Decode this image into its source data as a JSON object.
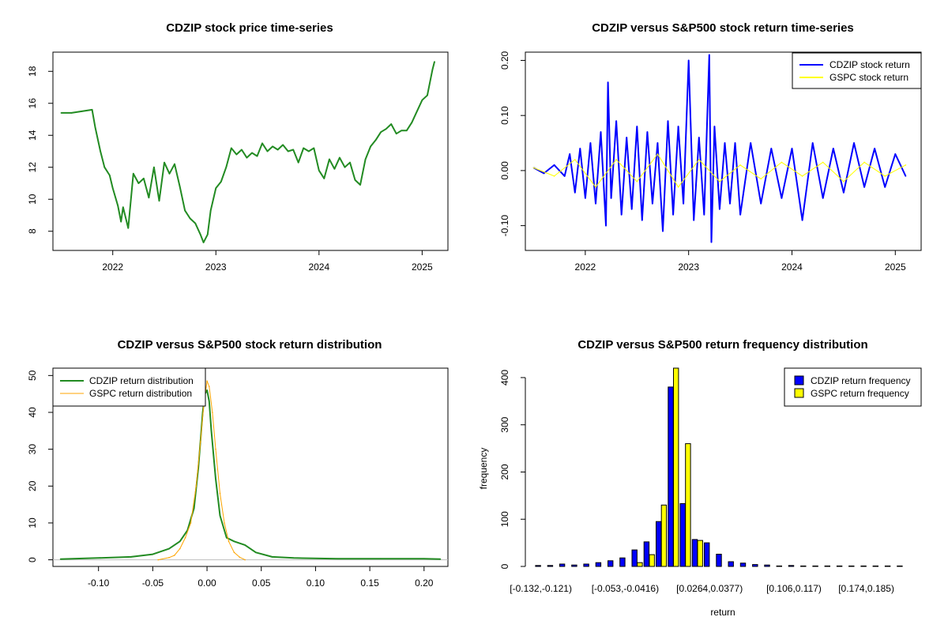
{
  "chart_data": [
    {
      "type": "line",
      "title": "CDZIP stock price time-series",
      "xlabel": "",
      "ylabel": "",
      "x_ticks": [
        "2022",
        "2023",
        "2024",
        "2025"
      ],
      "x_tick_values": [
        2022,
        2023,
        2024,
        2025
      ],
      "xlim": [
        2021.42,
        2025.25
      ],
      "ylim": [
        6.8,
        19.2
      ],
      "y_ticks": [
        8,
        10,
        12,
        14,
        16,
        18
      ],
      "series": [
        {
          "name": "CDZIP price",
          "color": "#228B22",
          "x": [
            2021.5,
            2021.6,
            2021.7,
            2021.8,
            2021.83,
            2021.88,
            2021.92,
            2021.97,
            2022.0,
            2022.05,
            2022.08,
            2022.1,
            2022.15,
            2022.2,
            2022.25,
            2022.3,
            2022.35,
            2022.4,
            2022.45,
            2022.5,
            2022.55,
            2022.6,
            2022.65,
            2022.7,
            2022.75,
            2022.8,
            2022.85,
            2022.88,
            2022.92,
            2022.95,
            2023.0,
            2023.05,
            2023.1,
            2023.15,
            2023.2,
            2023.25,
            2023.3,
            2023.35,
            2023.4,
            2023.45,
            2023.5,
            2023.55,
            2023.6,
            2023.65,
            2023.7,
            2023.75,
            2023.8,
            2023.85,
            2023.9,
            2023.95,
            2024.0,
            2024.05,
            2024.1,
            2024.15,
            2024.2,
            2024.25,
            2024.3,
            2024.35,
            2024.4,
            2024.45,
            2024.5,
            2024.55,
            2024.6,
            2024.65,
            2024.7,
            2024.75,
            2024.8,
            2024.85,
            2024.9,
            2024.95,
            2025.0,
            2025.05,
            2025.1,
            2025.12
          ],
          "values": [
            15.4,
            15.4,
            15.5,
            15.6,
            14.5,
            13.0,
            12.0,
            11.5,
            10.7,
            9.6,
            8.6,
            9.5,
            8.2,
            11.6,
            11.0,
            11.3,
            10.1,
            12.0,
            9.9,
            12.3,
            11.6,
            12.2,
            10.8,
            9.3,
            8.8,
            8.5,
            7.8,
            7.3,
            7.8,
            9.3,
            10.7,
            11.1,
            12.0,
            13.2,
            12.8,
            13.1,
            12.6,
            12.9,
            12.7,
            13.5,
            13.0,
            13.3,
            13.1,
            13.4,
            13.0,
            13.1,
            12.3,
            13.2,
            13.0,
            13.2,
            11.8,
            11.3,
            12.5,
            11.9,
            12.6,
            12.0,
            12.3,
            11.2,
            10.9,
            12.5,
            13.3,
            13.7,
            14.2,
            14.4,
            14.7,
            14.1,
            14.3,
            14.3,
            14.8,
            15.5,
            16.2,
            16.5,
            18.1,
            18.6
          ]
        }
      ]
    },
    {
      "type": "line",
      "title": "CDZIP versus S&P500 stock return time-series",
      "xlabel": "",
      "ylabel": "",
      "x_ticks": [
        "2022",
        "2023",
        "2024",
        "2025"
      ],
      "x_tick_values": [
        2022,
        2023,
        2024,
        2025
      ],
      "xlim": [
        2021.42,
        2025.25
      ],
      "ylim": [
        -0.145,
        0.215
      ],
      "y_ticks": [
        -0.1,
        0.0,
        0.1,
        0.2
      ],
      "y_tick_labels": [
        "-0.10",
        "0.00",
        "0.10",
        "0.20"
      ],
      "legend": "top-right",
      "series": [
        {
          "name": "CDZIP stock return",
          "color": "#0000FF",
          "x": [
            2021.5,
            2021.6,
            2021.7,
            2021.8,
            2021.85,
            2021.9,
            2021.95,
            2022.0,
            2022.05,
            2022.1,
            2022.15,
            2022.2,
            2022.22,
            2022.25,
            2022.3,
            2022.35,
            2022.4,
            2022.45,
            2022.5,
            2022.55,
            2022.6,
            2022.65,
            2022.7,
            2022.75,
            2022.8,
            2022.85,
            2022.9,
            2022.95,
            2023.0,
            2023.05,
            2023.1,
            2023.15,
            2023.2,
            2023.22,
            2023.25,
            2023.3,
            2023.35,
            2023.4,
            2023.45,
            2023.5,
            2023.6,
            2023.7,
            2023.8,
            2023.9,
            2024.0,
            2024.1,
            2024.2,
            2024.3,
            2024.4,
            2024.5,
            2024.6,
            2024.7,
            2024.8,
            2024.9,
            2025.0,
            2025.1
          ],
          "values": [
            0.005,
            -0.005,
            0.01,
            -0.01,
            0.03,
            -0.04,
            0.04,
            -0.05,
            0.05,
            -0.06,
            0.07,
            -0.1,
            0.16,
            -0.05,
            0.09,
            -0.08,
            0.06,
            -0.07,
            0.08,
            -0.09,
            0.07,
            -0.06,
            0.05,
            -0.11,
            0.09,
            -0.08,
            0.08,
            -0.06,
            0.2,
            -0.09,
            0.06,
            -0.08,
            0.21,
            -0.13,
            0.08,
            -0.07,
            0.05,
            -0.06,
            0.05,
            -0.08,
            0.05,
            -0.06,
            0.04,
            -0.05,
            0.04,
            -0.09,
            0.05,
            -0.05,
            0.04,
            -0.04,
            0.05,
            -0.03,
            0.04,
            -0.03,
            0.03,
            -0.01
          ]
        },
        {
          "name": "GSPC stock return",
          "color": "#FFFF00",
          "x": [
            2021.5,
            2021.7,
            2021.9,
            2022.1,
            2022.3,
            2022.5,
            2022.7,
            2022.9,
            2023.1,
            2023.3,
            2023.5,
            2023.7,
            2023.9,
            2024.1,
            2024.3,
            2024.5,
            2024.7,
            2024.9,
            2025.1
          ],
          "values": [
            0.005,
            -0.01,
            0.02,
            -0.03,
            0.02,
            -0.02,
            0.03,
            -0.03,
            0.02,
            -0.02,
            0.01,
            -0.015,
            0.015,
            -0.01,
            0.015,
            -0.02,
            0.015,
            -0.01,
            0.01
          ]
        }
      ]
    },
    {
      "type": "line",
      "title": "CDZIP versus S&P500 stock return distribution",
      "xlabel": "",
      "ylabel": "",
      "x_ticks": [
        "-0.10",
        "-0.05",
        "0.00",
        "0.05",
        "0.10",
        "0.15",
        "0.20"
      ],
      "x_tick_values": [
        -0.1,
        -0.05,
        0.0,
        0.05,
        0.1,
        0.15,
        0.2
      ],
      "xlim": [
        -0.142,
        0.222
      ],
      "ylim": [
        -1.8,
        52
      ],
      "y_ticks": [
        0,
        10,
        20,
        30,
        40,
        50
      ],
      "legend": "top-left",
      "series": [
        {
          "name": "CDZIP return distribution",
          "color": "#228B22",
          "x": [
            -0.135,
            -0.1,
            -0.07,
            -0.05,
            -0.035,
            -0.025,
            -0.018,
            -0.012,
            -0.008,
            -0.004,
            -0.002,
            0.0,
            0.002,
            0.004,
            0.008,
            0.012,
            0.018,
            0.025,
            0.035,
            0.045,
            0.06,
            0.08,
            0.12,
            0.16,
            0.2,
            0.215
          ],
          "values": [
            0.2,
            0.5,
            0.8,
            1.5,
            3.0,
            5.0,
            8.0,
            14.0,
            25.0,
            40.0,
            45.0,
            46.0,
            43.0,
            35.0,
            22.0,
            12.0,
            6.0,
            5.0,
            4.0,
            2.0,
            0.8,
            0.5,
            0.3,
            0.3,
            0.3,
            0.2
          ]
        },
        {
          "name": "GSPC return distribution",
          "color": "#FFA500",
          "x": [
            -0.045,
            -0.035,
            -0.03,
            -0.025,
            -0.02,
            -0.015,
            -0.01,
            -0.006,
            -0.003,
            0.0,
            0.002,
            0.005,
            0.008,
            0.012,
            0.016,
            0.02,
            0.025,
            0.03,
            0.035
          ],
          "values": [
            0.0,
            0.6,
            1.2,
            3.0,
            6.0,
            10.0,
            20.0,
            32.0,
            42.0,
            48.5,
            47.0,
            40.0,
            30.0,
            18.0,
            10.0,
            5.0,
            2.0,
            0.7,
            0.0
          ]
        }
      ]
    },
    {
      "type": "bar",
      "title": "CDZIP versus S&P500 return frequency distribution",
      "xlabel": "return",
      "ylabel": "frequency",
      "x_tick_labels": [
        "[-0.132,-0.121)",
        "[-0.053,-0.0416)",
        "[0.0264,0.0377)",
        "[0.106,0.117)",
        "[0.174,0.185)"
      ],
      "x_tick_bin_index": [
        0,
        7,
        14,
        21,
        27
      ],
      "ylim": [
        0,
        420
      ],
      "y_ticks": [
        0,
        100,
        200,
        300,
        400
      ],
      "legend": "top-right",
      "bins": 31,
      "series": [
        {
          "name": "CDZIP return frequency",
          "color": "#0000FF",
          "values": [
            2,
            2,
            5,
            3,
            5,
            8,
            12,
            18,
            35,
            52,
            95,
            380,
            133,
            57,
            50,
            26,
            10,
            7,
            4,
            3,
            1,
            2,
            1,
            1,
            1,
            1,
            1,
            1,
            1,
            1,
            1
          ]
        },
        {
          "name": "GSPC return frequency",
          "color": "#FFFF00",
          "values": [
            0,
            0,
            0,
            0,
            0,
            0,
            0,
            0,
            8,
            25,
            130,
            420,
            260,
            55,
            0,
            0,
            0,
            0,
            0,
            0,
            0,
            0,
            0,
            0,
            0,
            0,
            0,
            0,
            0,
            0,
            0
          ]
        }
      ]
    }
  ]
}
